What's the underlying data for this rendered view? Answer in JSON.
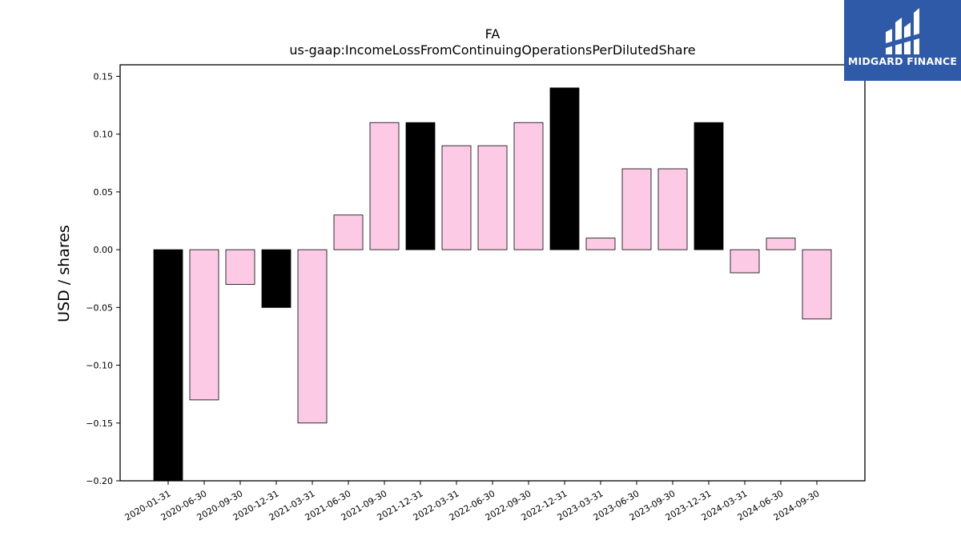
{
  "chart_data": {
    "type": "bar",
    "title": "FA",
    "subtitle": "us-gaap:IncomeLossFromContinuingOperationsPerDilutedShare",
    "xlabel": "",
    "ylabel": "USD / shares",
    "ylim": [
      -0.2,
      0.16
    ],
    "yticks": [
      "0.15",
      "0.10",
      "0.05",
      "0.00",
      "−0.05",
      "−0.10",
      "−0.15",
      "−0.20"
    ],
    "ytick_values": [
      0.15,
      0.1,
      0.05,
      0.0,
      -0.05,
      -0.1,
      -0.15,
      -0.2
    ],
    "categories": [
      "2020-01-31",
      "2020-06-30",
      "2020-09-30",
      "2020-12-31",
      "2021-03-31",
      "2021-06-30",
      "2021-09-30",
      "2021-12-31",
      "2022-03-31",
      "2022-06-30",
      "2022-09-30",
      "2022-12-31",
      "2023-03-31",
      "2023-06-30",
      "2023-09-30",
      "2023-12-31",
      "2024-03-31",
      "2024-06-30",
      "2024-09-30"
    ],
    "values": [
      -0.21,
      -0.13,
      -0.03,
      -0.05,
      -0.15,
      0.03,
      0.11,
      0.11,
      0.09,
      0.09,
      0.11,
      0.14,
      0.01,
      0.07,
      0.07,
      0.11,
      -0.02,
      0.01,
      -0.06
    ],
    "bar_colors": [
      "#000000",
      "#fccae4",
      "#fccae4",
      "#000000",
      "#fccae4",
      "#fccae4",
      "#fccae4",
      "#000000",
      "#fccae4",
      "#fccae4",
      "#fccae4",
      "#000000",
      "#fccae4",
      "#fccae4",
      "#fccae4",
      "#000000",
      "#fccae4",
      "#fccae4",
      "#fccae4"
    ],
    "grid": false,
    "legend": "none"
  },
  "logo": {
    "text": "MIDGARD FINANCE",
    "icon": "midgard-finance-logo-icon",
    "background": "#2f5aa8"
  }
}
